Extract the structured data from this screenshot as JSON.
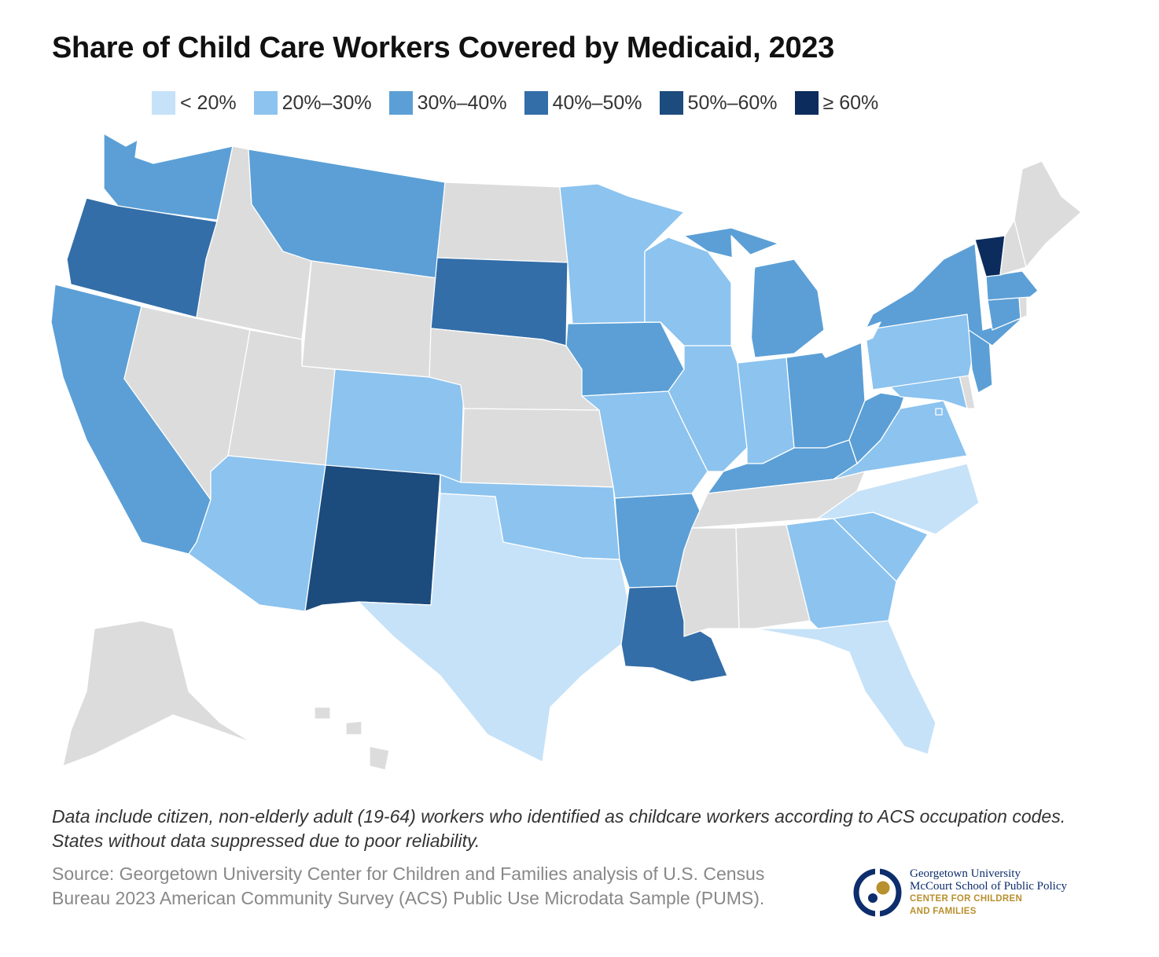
{
  "title": "Share of Child Care Workers Covered by Medicaid, 2023",
  "legend": [
    {
      "label": "< 20%",
      "color": "#c6e2f8"
    },
    {
      "label": "20%–30%",
      "color": "#8cc3ef"
    },
    {
      "label": "30%–40%",
      "color": "#5b9fd6"
    },
    {
      "label": "40%–50%",
      "color": "#336ea8"
    },
    {
      "label": "50%–60%",
      "color": "#1c4b7d"
    },
    {
      "label": "≥ 60%",
      "color": "#0b2c5c"
    }
  ],
  "no_data_color": "#dcdcdc",
  "chart_data": {
    "type": "choropleth",
    "title": "Share of Child Care Workers Covered by Medicaid, 2023",
    "bins": [
      "< 20%",
      "20%–30%",
      "30%–40%",
      "40%–50%",
      "50%–60%",
      "≥ 60%"
    ],
    "states": {
      "WA": "30%–40%",
      "OR": "40%–50%",
      "CA": "30%–40%",
      "NV": "no data",
      "ID": "no data",
      "MT": "30%–40%",
      "WY": "no data",
      "UT": "no data",
      "AZ": "20%–30%",
      "CO": "20%–30%",
      "NM": "50%–60%",
      "ND": "no data",
      "SD": "40%–50%",
      "NE": "no data",
      "KS": "no data",
      "OK": "20%–30%",
      "TX": "< 20%",
      "MN": "20%–30%",
      "IA": "30%–40%",
      "MO": "20%–30%",
      "AR": "30%–40%",
      "LA": "40%–50%",
      "WI": "20%–30%",
      "IL": "20%–30%",
      "MI": "30%–40%",
      "IN": "20%–30%",
      "OH": "30%–40%",
      "KY": "30%–40%",
      "TN": "no data",
      "MS": "no data",
      "AL": "no data",
      "GA": "20%–30%",
      "FL": "< 20%",
      "SC": "20%–30%",
      "NC": "< 20%",
      "VA": "20%–30%",
      "WV": "30%–40%",
      "MD": "20%–30%",
      "DE": "no data",
      "PA": "20%–30%",
      "NJ": "30%–40%",
      "NY": "30%–40%",
      "CT": "30%–40%",
      "RI": "no data",
      "MA": "30%–40%",
      "VT": "≥ 60%",
      "NH": "no data",
      "ME": "no data",
      "AK": "no data",
      "HI": "no data",
      "DC": "20%–30%"
    }
  },
  "note": "Data include citizen, non-elderly adult (19-64) workers who identified as childcare workers according to ACS occupation codes. States without data suppressed due to poor reliability.",
  "source": "Source: Georgetown University Center for Children and Families analysis of U.S. Census Bureau 2023 American Community Survey (ACS) Public Use Microdata Sample (PUMS).",
  "logo": {
    "line1": "Georgetown University",
    "line2": "McCourt School of Public Policy",
    "line3": "CENTER FOR CHILDREN",
    "line4": "AND FAMILIES",
    "navy": "#0d2d6c",
    "gold": "#b8902e"
  }
}
